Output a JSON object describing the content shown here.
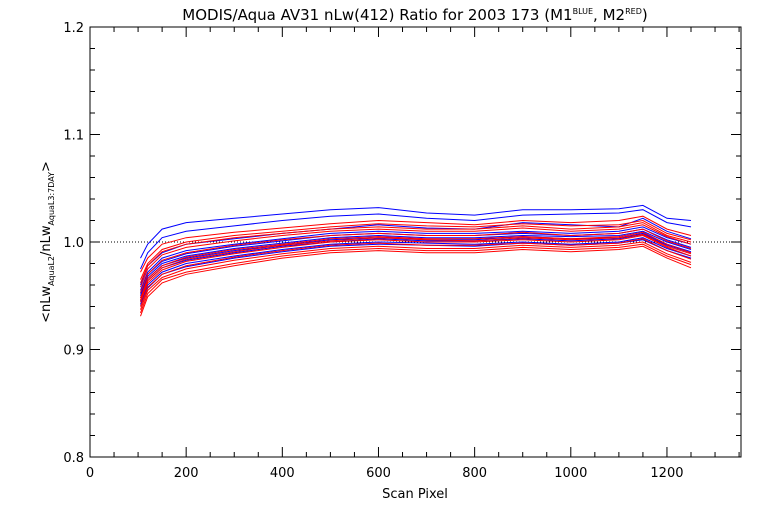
{
  "chart_data": {
    "type": "line",
    "title": {
      "main": "MODIS/Aqua AV31 nLw(412) Ratio for 2003 173 (M1",
      "sup1": "BLUE",
      "mid": ", M2",
      "sup2": "RED",
      "end": ")"
    },
    "xlabel": "Scan Pixel",
    "ylabel": {
      "prefix": "<nLw",
      "sub1": "AquaL2",
      "mid": "/nLw",
      "sub2": "AquaL3:7DAY",
      "suffix": ">"
    },
    "xlim": [
      0,
      1354
    ],
    "ylim": [
      0.8,
      1.2
    ],
    "xticks": [
      0,
      200,
      400,
      600,
      800,
      1000,
      1200
    ],
    "xtick_labels": [
      "0",
      "200",
      "400",
      "600",
      "800",
      "1000",
      "1200"
    ],
    "yticks": [
      0.8,
      0.9,
      1.0,
      1.1,
      1.2
    ],
    "ytick_labels": [
      "0.8",
      "0.9",
      "1.0",
      "1.1",
      "1.2"
    ],
    "reference_line": 1.0,
    "x": [
      105,
      120,
      150,
      200,
      300,
      400,
      500,
      600,
      700,
      800,
      900,
      1000,
      1100,
      1150,
      1200,
      1250
    ],
    "series_colors": {
      "M1": "#0000ff",
      "M2": "#ff0000"
    },
    "series": [
      {
        "group": "M1",
        "values": [
          0.985,
          0.998,
          1.012,
          1.018,
          1.022,
          1.026,
          1.03,
          1.032,
          1.027,
          1.025,
          1.03,
          1.03,
          1.031,
          1.034,
          1.022,
          1.02
        ]
      },
      {
        "group": "M1",
        "values": [
          0.975,
          0.99,
          1.004,
          1.01,
          1.015,
          1.02,
          1.024,
          1.026,
          1.022,
          1.02,
          1.025,
          1.026,
          1.027,
          1.03,
          1.018,
          1.014
        ]
      },
      {
        "group": "M1",
        "values": [
          0.96,
          0.978,
          0.99,
          0.998,
          1.003,
          1.008,
          1.012,
          1.016,
          1.013,
          1.012,
          1.018,
          1.016,
          1.014,
          1.022,
          1.01,
          1.003
        ]
      },
      {
        "group": "M1",
        "values": [
          0.955,
          0.972,
          0.985,
          0.992,
          0.998,
          1.003,
          1.008,
          1.01,
          1.008,
          1.008,
          1.01,
          1.008,
          1.01,
          1.014,
          1.004,
          0.998
        ]
      },
      {
        "group": "M1",
        "values": [
          0.95,
          0.968,
          0.98,
          0.987,
          0.994,
          0.999,
          1.004,
          1.006,
          1.004,
          1.004,
          1.006,
          1.005,
          1.006,
          1.01,
          1.0,
          0.993
        ]
      },
      {
        "group": "M1",
        "values": [
          0.945,
          0.964,
          0.976,
          0.983,
          0.99,
          0.996,
          1.0,
          1.003,
          1.001,
          1.001,
          1.003,
          1.001,
          1.003,
          1.007,
          0.997,
          0.99
        ]
      },
      {
        "group": "M1",
        "values": [
          0.942,
          0.96,
          0.972,
          0.98,
          0.987,
          0.993,
          0.998,
          1.0,
          0.999,
          0.998,
          1.0,
          0.998,
          1.0,
          1.004,
          0.994,
          0.987
        ]
      },
      {
        "group": "M1",
        "values": [
          0.94,
          0.957,
          0.97,
          0.977,
          0.985,
          0.991,
          0.996,
          0.998,
          0.997,
          0.996,
          0.999,
          0.997,
          0.999,
          1.002,
          0.992,
          0.985
        ]
      },
      {
        "group": "M1",
        "values": [
          0.948,
          0.966,
          0.978,
          0.985,
          0.992,
          0.997,
          1.002,
          1.004,
          1.002,
          1.002,
          1.005,
          1.003,
          1.004,
          1.008,
          0.998,
          0.991
        ]
      },
      {
        "group": "M1",
        "values": [
          0.952,
          0.97,
          0.982,
          0.989,
          0.996,
          1.001,
          1.006,
          1.008,
          1.006,
          1.006,
          1.008,
          1.006,
          1.008,
          1.012,
          1.002,
          0.995
        ]
      },
      {
        "group": "M2",
        "values": [
          0.972,
          0.985,
          0.998,
          1.004,
          1.009,
          1.013,
          1.017,
          1.02,
          1.018,
          1.016,
          1.02,
          1.018,
          1.02,
          1.024,
          1.012,
          1.006
        ]
      },
      {
        "group": "M2",
        "values": [
          0.965,
          0.98,
          0.993,
          1.0,
          1.006,
          1.01,
          1.014,
          1.017,
          1.015,
          1.014,
          1.017,
          1.015,
          1.016,
          1.02,
          1.008,
          1.002
        ]
      },
      {
        "group": "M2",
        "values": [
          0.958,
          0.975,
          0.988,
          0.995,
          1.001,
          1.006,
          1.01,
          1.012,
          1.01,
          1.01,
          1.013,
          1.01,
          1.012,
          1.016,
          1.005,
          0.998
        ]
      },
      {
        "group": "M2",
        "values": [
          0.953,
          0.97,
          0.983,
          0.99,
          0.997,
          1.002,
          1.006,
          1.008,
          1.006,
          1.006,
          1.009,
          1.006,
          1.008,
          1.012,
          1.001,
          0.994
        ]
      },
      {
        "group": "M2",
        "values": [
          0.948,
          0.966,
          0.978,
          0.986,
          0.993,
          0.998,
          1.003,
          1.005,
          1.003,
          1.003,
          1.005,
          1.003,
          1.005,
          1.009,
          0.998,
          0.99
        ]
      },
      {
        "group": "M2",
        "values": [
          0.944,
          0.962,
          0.974,
          0.982,
          0.989,
          0.995,
          1.0,
          1.002,
          1.0,
          1.0,
          1.002,
          1.0,
          1.002,
          1.006,
          0.995,
          0.987
        ]
      },
      {
        "group": "M2",
        "values": [
          0.94,
          0.958,
          0.97,
          0.978,
          0.986,
          0.992,
          0.997,
          0.999,
          0.997,
          0.997,
          0.999,
          0.997,
          0.999,
          1.003,
          0.992,
          0.984
        ]
      },
      {
        "group": "M2",
        "values": [
          0.937,
          0.955,
          0.967,
          0.975,
          0.983,
          0.989,
          0.994,
          0.996,
          0.994,
          0.994,
          0.997,
          0.995,
          0.997,
          1.0,
          0.989,
          0.981
        ]
      },
      {
        "group": "M2",
        "values": [
          0.934,
          0.952,
          0.965,
          0.972,
          0.98,
          0.987,
          0.992,
          0.994,
          0.992,
          0.992,
          0.995,
          0.993,
          0.995,
          0.998,
          0.987,
          0.979
        ]
      },
      {
        "group": "M2",
        "values": [
          0.931,
          0.949,
          0.962,
          0.97,
          0.978,
          0.985,
          0.99,
          0.992,
          0.99,
          0.99,
          0.993,
          0.991,
          0.993,
          0.996,
          0.985,
          0.976
        ]
      },
      {
        "group": "M2",
        "values": [
          0.946,
          0.964,
          0.976,
          0.984,
          0.991,
          0.997,
          1.001,
          1.004,
          1.002,
          1.001,
          1.004,
          1.002,
          1.004,
          1.007,
          0.996,
          0.989
        ]
      },
      {
        "group": "M2",
        "values": [
          0.962,
          0.978,
          0.991,
          0.998,
          1.004,
          1.008,
          1.012,
          1.014,
          1.012,
          1.012,
          1.015,
          1.012,
          1.014,
          1.018,
          1.006,
          1.0
        ]
      }
    ]
  }
}
